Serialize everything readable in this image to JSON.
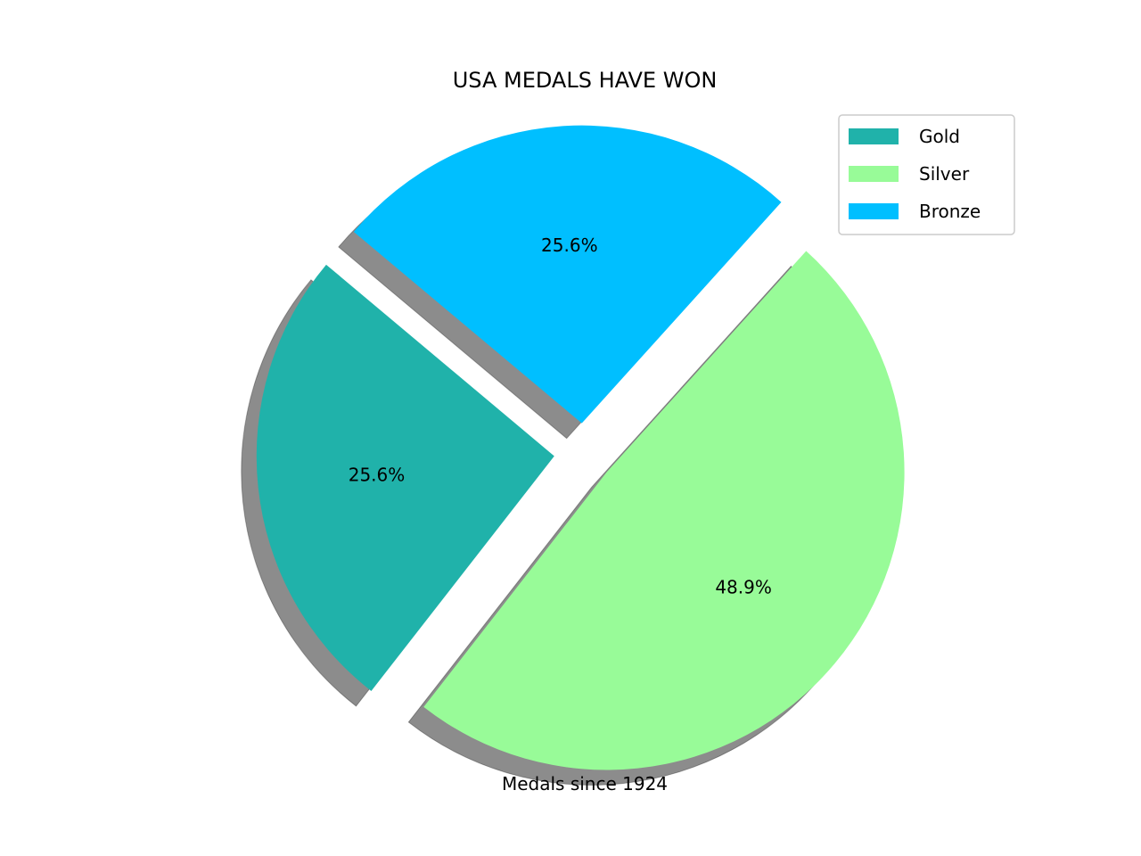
{
  "chart_data": {
    "type": "pie",
    "title": "USA MEDALS HAVE WON",
    "xlabel": "Medals since 1924",
    "slices": [
      {
        "label": "Gold",
        "pct_label": "25.6%",
        "value": 25.6,
        "color": "#20b2aa",
        "explode": 0.1
      },
      {
        "label": "Silver",
        "pct_label": "48.9%",
        "value": 48.9,
        "color": "#98fb98",
        "explode": 0.1
      },
      {
        "label": "Bronze",
        "pct_label": "25.6%",
        "value": 25.6,
        "color": "#00bfff",
        "explode": 0.1
      }
    ],
    "start_angle_deg": 140,
    "shadow": true,
    "legend": {
      "position": "upper-right",
      "entries": [
        "Gold",
        "Silver",
        "Bronze"
      ]
    }
  }
}
